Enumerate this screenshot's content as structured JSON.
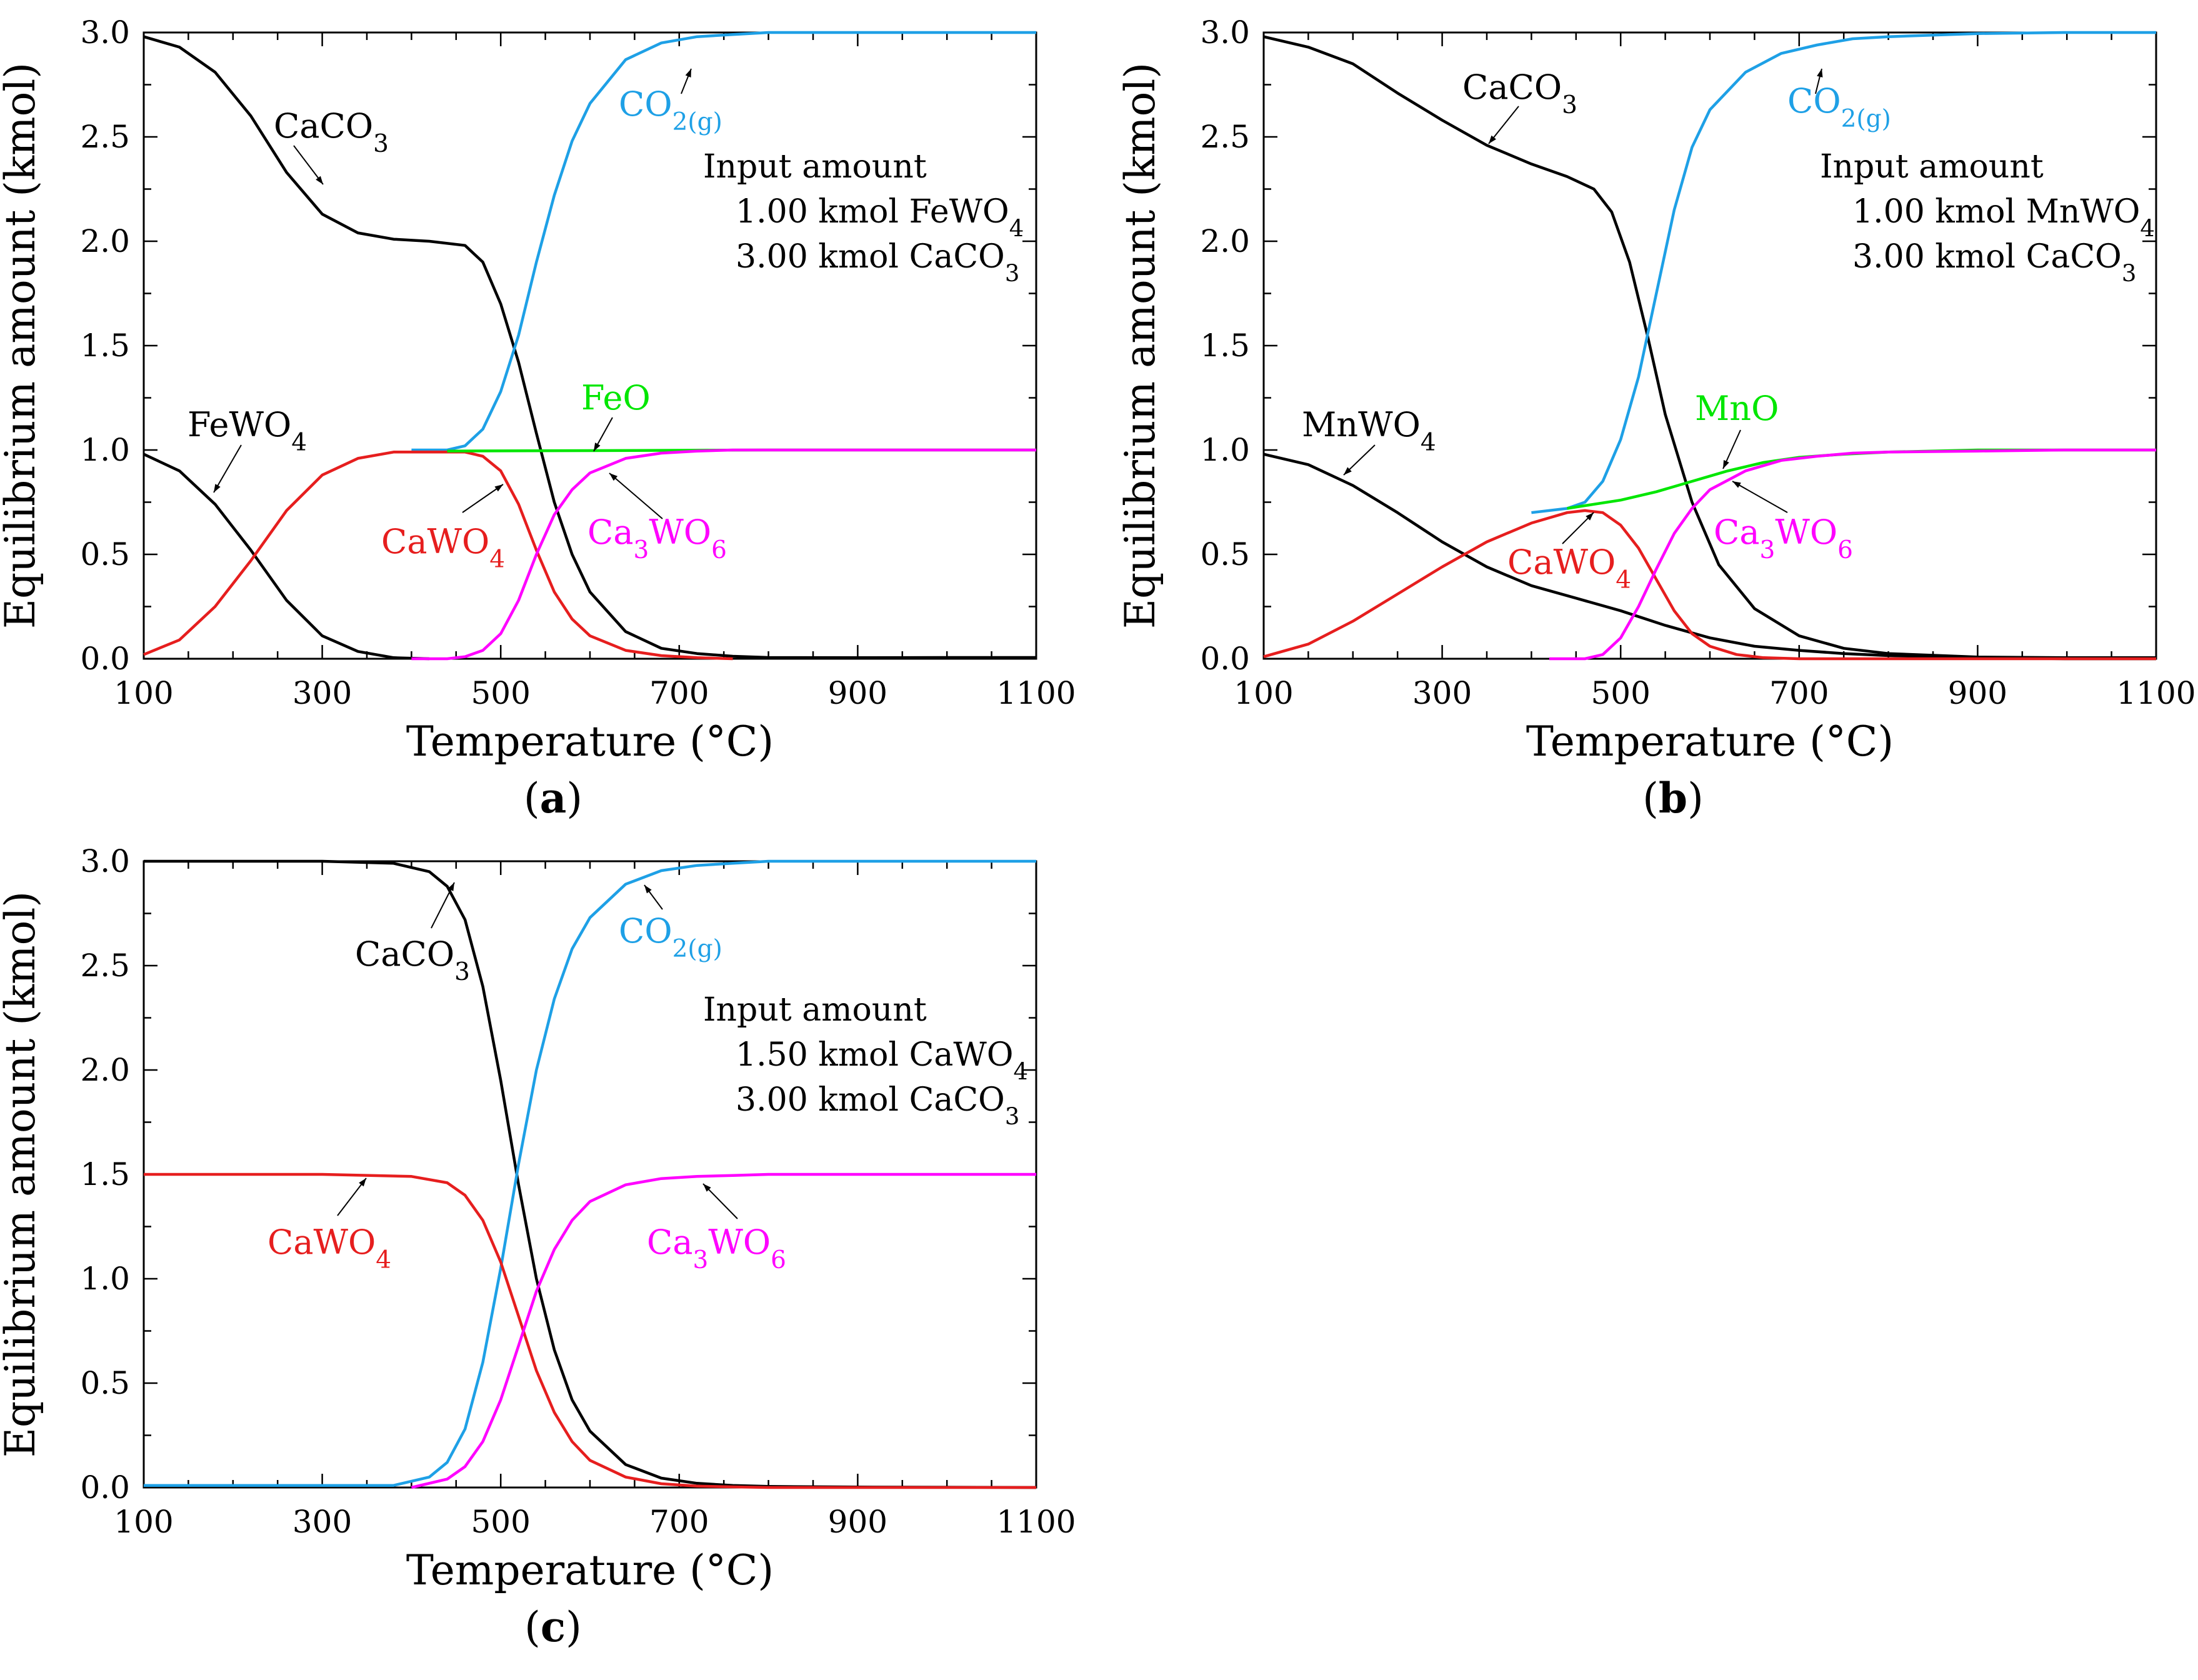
{
  "colors": {
    "black": "#000000",
    "blue": "#1ea0e6",
    "red": "#e61e1e",
    "magenta": "#ff00ff",
    "green": "#00e600"
  },
  "chart_data": [
    {
      "type": "line",
      "panel": "(a)",
      "panel_letter": "a",
      "xlabel": "Temperature (°C)",
      "ylabel": "Equilibrium amount (kmol)",
      "xlim": [
        100,
        1100
      ],
      "ylim": [
        0.0,
        3.0
      ],
      "xticks": [
        "100",
        "300",
        "500",
        "700",
        "900",
        "1100"
      ],
      "yticks": [
        "0.0",
        "0.5",
        "1.0",
        "1.5",
        "2.0",
        "2.5",
        "3.0"
      ],
      "input": {
        "title": "Input amount",
        "lines": [
          [
            "1.00 kmol FeWO",
            "4",
            ""
          ],
          [
            "3.00 kmol CaCO",
            "3",
            ""
          ]
        ]
      },
      "series": [
        {
          "name": "CaCO3",
          "label": [
            "CaCO",
            "3",
            ""
          ],
          "color": "#000000",
          "x": [
            100,
            140,
            180,
            220,
            260,
            300,
            340,
            380,
            420,
            460,
            480,
            500,
            520,
            540,
            560,
            580,
            600,
            640,
            680,
            720,
            760,
            800,
            900,
            1000,
            1100
          ],
          "y": [
            2.98,
            2.93,
            2.81,
            2.6,
            2.33,
            2.13,
            2.04,
            2.01,
            2.0,
            1.98,
            1.9,
            1.7,
            1.42,
            1.08,
            0.75,
            0.5,
            0.32,
            0.13,
            0.05,
            0.025,
            0.012,
            0.006,
            0.005,
            0.006,
            0.006
          ]
        },
        {
          "name": "CO2(g)",
          "label": [
            "CO",
            "2(g)",
            ""
          ],
          "color": "#1ea0e6",
          "x": [
            400,
            440,
            460,
            480,
            500,
            520,
            540,
            560,
            580,
            600,
            640,
            680,
            720,
            760,
            800,
            900,
            1000,
            1100
          ],
          "y": [
            1.0,
            1.0,
            1.02,
            1.1,
            1.28,
            1.55,
            1.9,
            2.22,
            2.48,
            2.66,
            2.87,
            2.95,
            2.98,
            2.99,
            3.0,
            3.0,
            3.0,
            3.0
          ]
        },
        {
          "name": "FeWO4",
          "label": [
            "FeWO",
            "4",
            ""
          ],
          "color": "#000000",
          "x": [
            100,
            140,
            180,
            220,
            260,
            300,
            340,
            380,
            420
          ],
          "y": [
            0.98,
            0.9,
            0.74,
            0.52,
            0.28,
            0.11,
            0.035,
            0.005,
            0.0
          ]
        },
        {
          "name": "CaWO4",
          "label": [
            "CaWO",
            "4",
            ""
          ],
          "color": "#e61e1e",
          "x": [
            100,
            140,
            180,
            220,
            260,
            300,
            340,
            380,
            420,
            460,
            480,
            500,
            520,
            540,
            560,
            580,
            600,
            640,
            680,
            720,
            760
          ],
          "y": [
            0.02,
            0.09,
            0.25,
            0.47,
            0.71,
            0.88,
            0.96,
            0.99,
            0.99,
            0.99,
            0.97,
            0.9,
            0.74,
            0.52,
            0.32,
            0.19,
            0.11,
            0.04,
            0.015,
            0.005,
            0.0
          ]
        },
        {
          "name": "FeO",
          "label": [
            "FeO",
            "",
            ""
          ],
          "color": "#00e600",
          "x": [
            440,
            600,
            800,
            1100
          ],
          "y": [
            0.995,
            0.997,
            1.0,
            1.0
          ]
        },
        {
          "name": "Ca3WO6",
          "label": [
            "Ca",
            "3",
            "WO",
            "6"
          ],
          "color": "#ff00ff",
          "x": [
            400,
            440,
            460,
            480,
            500,
            520,
            540,
            560,
            580,
            600,
            640,
            680,
            720,
            760,
            800,
            1100
          ],
          "y": [
            0.0,
            0.0,
            0.01,
            0.04,
            0.12,
            0.28,
            0.5,
            0.69,
            0.81,
            0.89,
            0.96,
            0.985,
            0.995,
            1.0,
            1.0,
            1.0
          ]
        }
      ]
    },
    {
      "type": "line",
      "panel": "(b)",
      "panel_letter": "b",
      "xlabel": "Temperature (°C)",
      "ylabel": "Equilibrium amount (kmol)",
      "xlim": [
        100,
        1100
      ],
      "ylim": [
        0.0,
        3.0
      ],
      "xticks": [
        "100",
        "300",
        "500",
        "700",
        "900",
        "1100"
      ],
      "yticks": [
        "0.0",
        "0.5",
        "1.0",
        "1.5",
        "2.0",
        "2.5",
        "3.0"
      ],
      "input": {
        "title": "Input amount",
        "lines": [
          [
            "1.00 kmol MnWO",
            "4",
            ""
          ],
          [
            "3.00 kmol CaCO",
            "3",
            ""
          ]
        ]
      },
      "series": [
        {
          "name": "CaCO3",
          "label": [
            "CaCO",
            "3",
            ""
          ],
          "color": "#000000",
          "x": [
            100,
            150,
            200,
            250,
            300,
            350,
            400,
            440,
            470,
            490,
            510,
            530,
            550,
            580,
            610,
            650,
            700,
            750,
            800,
            900,
            1000,
            1100
          ],
          "y": [
            2.98,
            2.93,
            2.85,
            2.71,
            2.58,
            2.46,
            2.37,
            2.31,
            2.25,
            2.14,
            1.9,
            1.55,
            1.17,
            0.75,
            0.45,
            0.24,
            0.11,
            0.05,
            0.025,
            0.008,
            0.005,
            0.005
          ]
        },
        {
          "name": "CO2(g)",
          "label": [
            "CO",
            "2(g)",
            ""
          ],
          "color": "#1ea0e6",
          "x": [
            400,
            440,
            460,
            480,
            500,
            520,
            540,
            560,
            580,
            600,
            640,
            680,
            720,
            760,
            800,
            900,
            1000,
            1100
          ],
          "y": [
            0.7,
            0.72,
            0.75,
            0.85,
            1.05,
            1.35,
            1.75,
            2.15,
            2.45,
            2.63,
            2.81,
            2.9,
            2.94,
            2.97,
            2.98,
            2.995,
            3.0,
            3.0
          ]
        },
        {
          "name": "MnWO4",
          "label": [
            "MnWO",
            "4",
            ""
          ],
          "color": "#000000",
          "x": [
            100,
            150,
            200,
            250,
            300,
            350,
            400,
            450,
            500,
            550,
            600,
            650,
            700,
            750,
            800,
            900,
            1000,
            1100
          ],
          "y": [
            0.98,
            0.93,
            0.83,
            0.7,
            0.56,
            0.44,
            0.35,
            0.29,
            0.23,
            0.16,
            0.1,
            0.06,
            0.04,
            0.025,
            0.015,
            0.005,
            0.0,
            0.0
          ]
        },
        {
          "name": "CaWO4",
          "label": [
            "CaWO",
            "4",
            ""
          ],
          "color": "#e61e1e",
          "x": [
            100,
            150,
            200,
            250,
            300,
            350,
            400,
            440,
            460,
            480,
            500,
            520,
            540,
            560,
            580,
            600,
            630,
            660,
            700,
            1100
          ],
          "y": [
            0.01,
            0.07,
            0.18,
            0.31,
            0.44,
            0.56,
            0.65,
            0.7,
            0.71,
            0.7,
            0.64,
            0.53,
            0.38,
            0.23,
            0.12,
            0.06,
            0.02,
            0.005,
            0.0,
            0.0
          ]
        },
        {
          "name": "MnO",
          "label": [
            "MnO",
            "",
            ""
          ],
          "color": "#00e600",
          "x": [
            440,
            470,
            500,
            540,
            580,
            620,
            660,
            700,
            750,
            800,
            900,
            1100
          ],
          "y": [
            0.72,
            0.74,
            0.76,
            0.8,
            0.85,
            0.9,
            0.94,
            0.965,
            0.98,
            0.99,
            1.0,
            1.0
          ]
        },
        {
          "name": "Ca3WO6",
          "label": [
            "Ca",
            "3",
            "WO",
            "6"
          ],
          "color": "#ff00ff",
          "x": [
            420,
            460,
            480,
            500,
            520,
            540,
            560,
            580,
            600,
            640,
            680,
            720,
            760,
            800,
            900,
            1000,
            1100
          ],
          "y": [
            0.0,
            0.0,
            0.02,
            0.1,
            0.25,
            0.43,
            0.6,
            0.72,
            0.81,
            0.9,
            0.95,
            0.97,
            0.985,
            0.99,
            0.995,
            1.0,
            1.0
          ]
        }
      ]
    },
    {
      "type": "line",
      "panel": "(c)",
      "panel_letter": "c",
      "xlabel": "Temperature (°C)",
      "ylabel": "Equilibrium amount (kmol)",
      "xlim": [
        100,
        1100
      ],
      "ylim": [
        0.0,
        3.0
      ],
      "xticks": [
        "100",
        "300",
        "500",
        "700",
        "900",
        "1100"
      ],
      "yticks": [
        "0.0",
        "0.5",
        "1.0",
        "1.5",
        "2.0",
        "2.5",
        "3.0"
      ],
      "input": {
        "title": "Input amount",
        "lines": [
          [
            "1.50 kmol CaWO",
            "4",
            ""
          ],
          [
            "3.00 kmol CaCO",
            "3",
            ""
          ]
        ]
      },
      "series": [
        {
          "name": "CaCO3",
          "label": [
            "CaCO",
            "3",
            ""
          ],
          "color": "#000000",
          "x": [
            100,
            300,
            380,
            420,
            440,
            460,
            480,
            500,
            520,
            540,
            560,
            580,
            600,
            640,
            680,
            720,
            760,
            800,
            900,
            1100
          ],
          "y": [
            3.0,
            3.0,
            2.99,
            2.95,
            2.88,
            2.72,
            2.4,
            1.95,
            1.45,
            1.0,
            0.66,
            0.42,
            0.27,
            0.11,
            0.045,
            0.02,
            0.01,
            0.005,
            0.002,
            0.0
          ]
        },
        {
          "name": "CO2(g)",
          "label": [
            "CO",
            "2(g)",
            ""
          ],
          "color": "#1ea0e6",
          "x": [
            100,
            300,
            380,
            420,
            440,
            460,
            480,
            500,
            520,
            540,
            560,
            580,
            600,
            640,
            680,
            720,
            760,
            800,
            900,
            1100
          ],
          "y": [
            0.01,
            0.01,
            0.01,
            0.05,
            0.12,
            0.28,
            0.6,
            1.05,
            1.55,
            2.0,
            2.34,
            2.58,
            2.73,
            2.89,
            2.955,
            2.98,
            2.99,
            3.0,
            3.0,
            3.0
          ]
        },
        {
          "name": "CaWO4",
          "label": [
            "CaWO",
            "4",
            ""
          ],
          "color": "#e61e1e",
          "x": [
            100,
            300,
            400,
            440,
            460,
            480,
            500,
            520,
            540,
            560,
            580,
            600,
            640,
            680,
            720,
            760,
            800,
            1100
          ],
          "y": [
            1.5,
            1.5,
            1.49,
            1.46,
            1.4,
            1.28,
            1.08,
            0.82,
            0.56,
            0.36,
            0.22,
            0.13,
            0.05,
            0.018,
            0.007,
            0.003,
            0.0,
            0.0
          ]
        },
        {
          "name": "Ca3WO6",
          "label": [
            "Ca",
            "3",
            "WO",
            "6"
          ],
          "color": "#ff00ff",
          "x": [
            400,
            440,
            460,
            480,
            500,
            520,
            540,
            560,
            580,
            600,
            640,
            680,
            720,
            760,
            800,
            900,
            1100
          ],
          "y": [
            0.0,
            0.04,
            0.1,
            0.22,
            0.42,
            0.68,
            0.94,
            1.14,
            1.28,
            1.37,
            1.45,
            1.48,
            1.49,
            1.495,
            1.5,
            1.5,
            1.5
          ]
        }
      ]
    }
  ]
}
